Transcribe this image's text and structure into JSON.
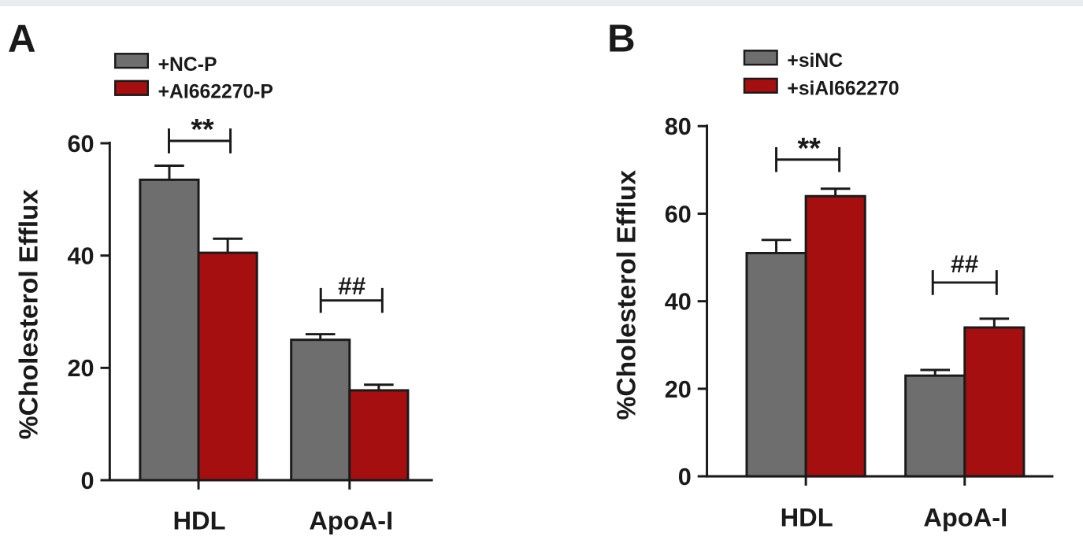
{
  "colors": {
    "series1": "#6e6e6e",
    "series2": "#a50f0f",
    "axis": "#1a1a1a"
  },
  "chart_data": [
    {
      "panel": "A",
      "type": "bar",
      "ylabel": "%Cholesterol Efflux",
      "ylim": [
        0,
        60
      ],
      "yticks": [
        0,
        20,
        40,
        60
      ],
      "categories": [
        "HDL",
        "ApoA-I"
      ],
      "series": [
        {
          "name": "+NC-P",
          "values": [
            53.5,
            25
          ],
          "errors": [
            2.5,
            1
          ]
        },
        {
          "name": "+AI662270-P",
          "values": [
            40.5,
            16
          ],
          "errors": [
            2.5,
            1
          ]
        }
      ],
      "annotations": [
        "**",
        "##"
      ],
      "legend_position": "top-left"
    },
    {
      "panel": "B",
      "type": "bar",
      "ylabel": "%Cholesterol Efflux",
      "ylim": [
        0,
        80
      ],
      "yticks": [
        0,
        20,
        40,
        60,
        80
      ],
      "categories": [
        "HDL",
        "ApoA-I"
      ],
      "series": [
        {
          "name": "+siNC",
          "values": [
            51,
            23
          ],
          "errors": [
            3,
            1.3
          ]
        },
        {
          "name": "+siAI662270",
          "values": [
            64,
            34
          ],
          "errors": [
            1.7,
            2
          ]
        }
      ],
      "annotations": [
        "**",
        "##"
      ],
      "legend_position": "top-left"
    }
  ]
}
